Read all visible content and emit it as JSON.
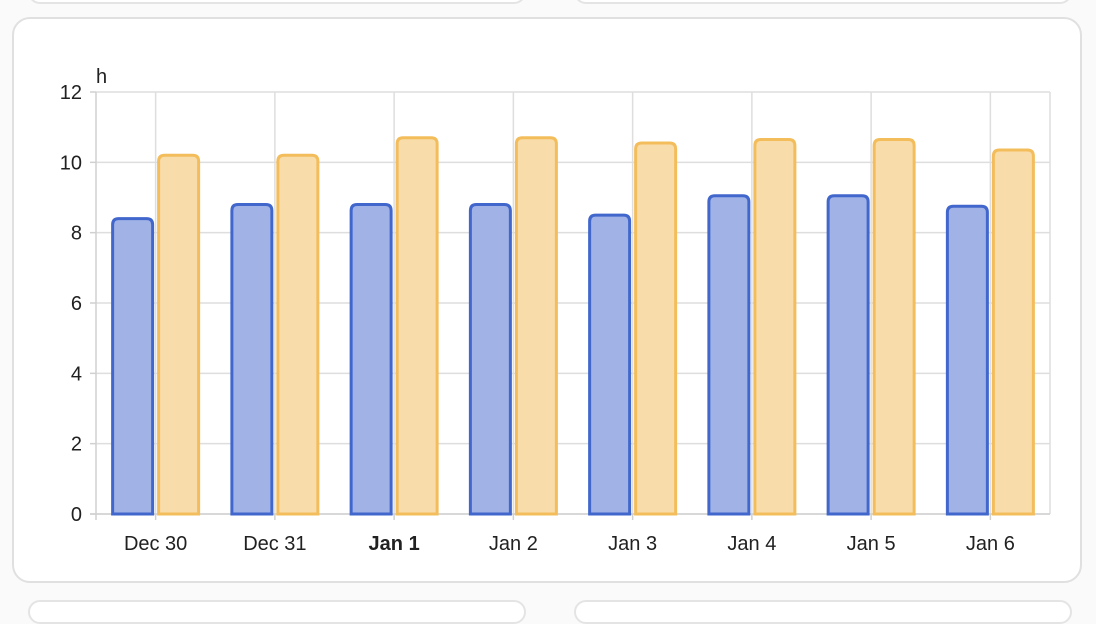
{
  "chart_data": {
    "type": "bar",
    "categories": [
      "Dec 30",
      "Dec 31",
      "Jan 1",
      "Jan 2",
      "Jan 3",
      "Jan 4",
      "Jan 5",
      "Jan 6"
    ],
    "highlighted_category": "Jan 1",
    "series": [
      {
        "values": [
          8.4,
          8.8,
          8.8,
          8.8,
          8.5,
          9.05,
          9.05,
          8.75
        ],
        "color": "#4267cc",
        "fill": "#a0b2e6"
      },
      {
        "values": [
          10.2,
          10.2,
          10.7,
          10.7,
          10.55,
          10.65,
          10.65,
          10.35
        ],
        "color": "#f3bd5c",
        "fill": "#f8ddaa"
      }
    ],
    "ylabel": "h",
    "ylim": [
      0,
      12
    ],
    "yticks": [
      0,
      2,
      4,
      6,
      8,
      10,
      12
    ],
    "grid": true,
    "legend": "none"
  }
}
